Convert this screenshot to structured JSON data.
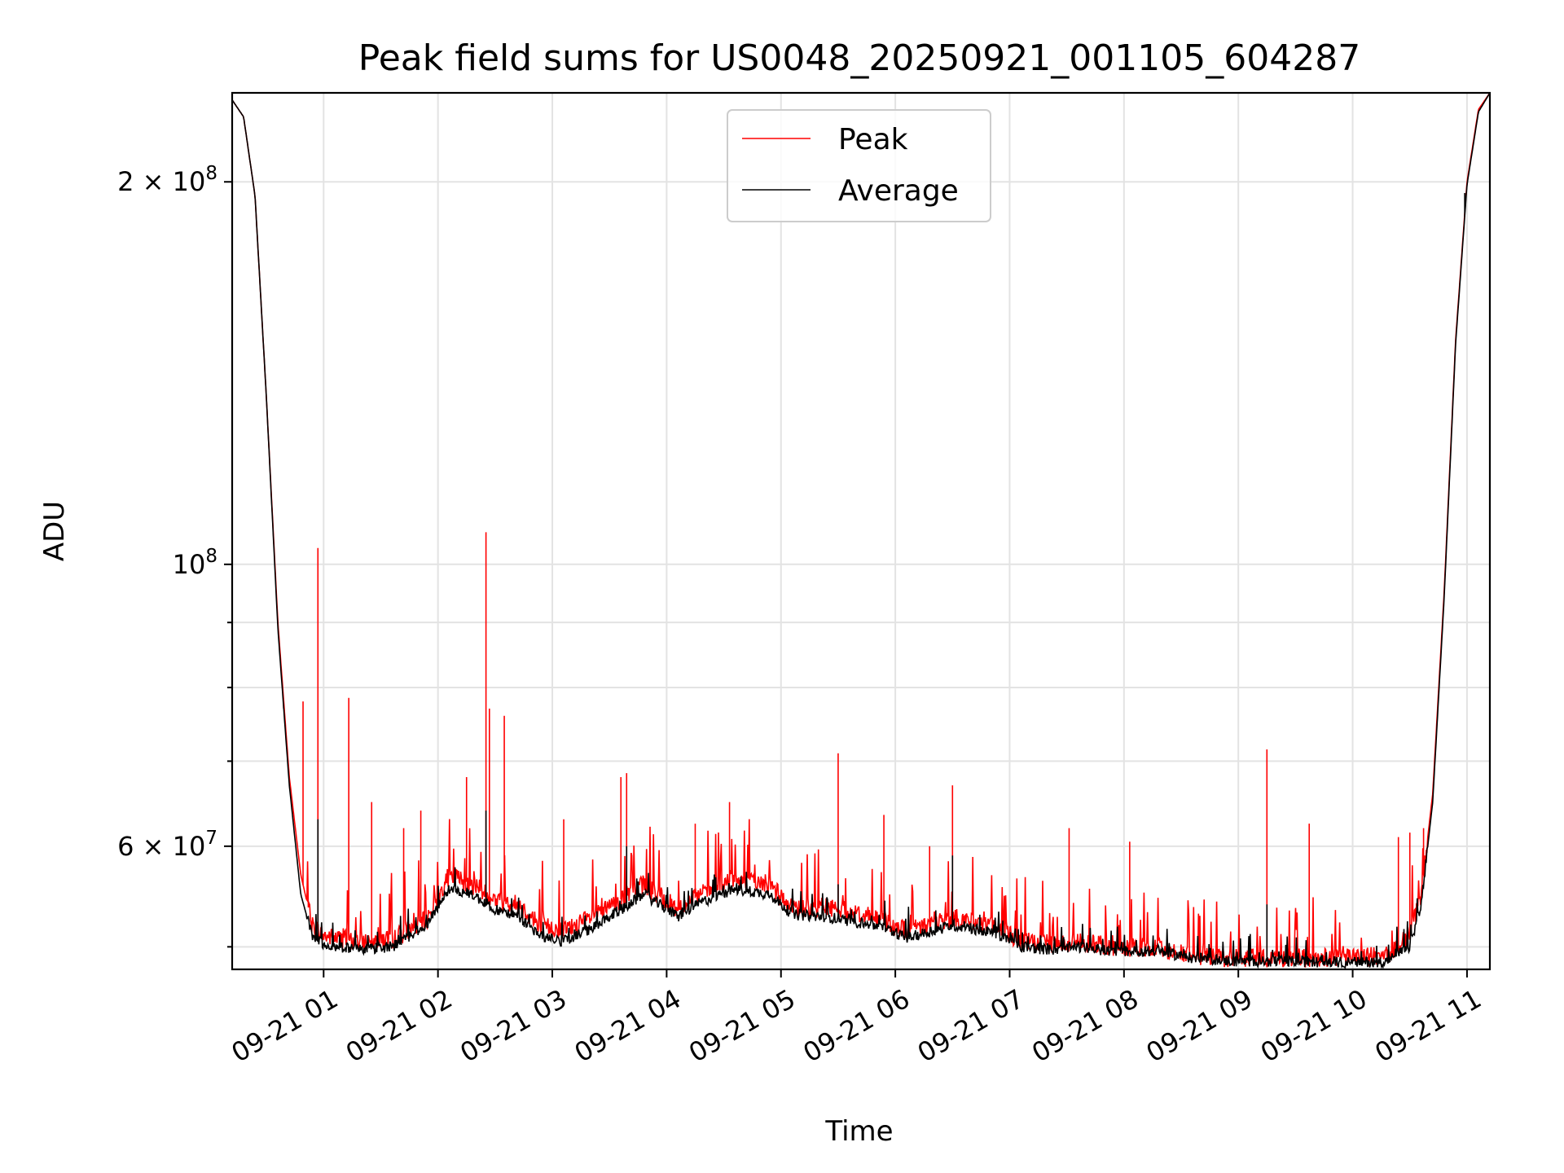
{
  "chart_data": {
    "type": "line",
    "title": "Peak field sums for US0048_20250921_001105_604287",
    "xlabel": "Time",
    "ylabel": "ADU",
    "y_scale": "log",
    "ylim": [
      48000000,
      235000000
    ],
    "xlim_hours": [
      0.2,
      11.2
    ],
    "grid": true,
    "legend_position": "upper-center",
    "x_tick_labels": [
      {
        "hour": 1,
        "label": "09-21 01"
      },
      {
        "hour": 2,
        "label": "09-21 02"
      },
      {
        "hour": 3,
        "label": "09-21 03"
      },
      {
        "hour": 4,
        "label": "09-21 04"
      },
      {
        "hour": 5,
        "label": "09-21 05"
      },
      {
        "hour": 6,
        "label": "09-21 06"
      },
      {
        "hour": 7,
        "label": "09-21 07"
      },
      {
        "hour": 8,
        "label": "09-21 08"
      },
      {
        "hour": 9,
        "label": "09-21 09"
      },
      {
        "hour": 10,
        "label": "09-21 10"
      },
      {
        "hour": 11,
        "label": "09-21 11"
      }
    ],
    "y_major_ticks": [
      {
        "value": 60000000,
        "mantissa": "6",
        "exponent": "7"
      },
      {
        "value": 100000000,
        "mantissa": "",
        "exponent": "8"
      },
      {
        "value": 200000000,
        "mantissa": "2",
        "exponent": "8"
      }
    ],
    "y_minor_ticks": [
      50000000,
      70000000,
      80000000,
      90000000
    ],
    "series": [
      {
        "name": "Peak",
        "color": "#ff0000",
        "base_points": [
          [
            0.2,
            232000000
          ],
          [
            0.3,
            225000000
          ],
          [
            0.4,
            195000000
          ],
          [
            0.5,
            135000000
          ],
          [
            0.6,
            90000000
          ],
          [
            0.7,
            68000000
          ],
          [
            0.8,
            57000000
          ],
          [
            0.9,
            52000000
          ],
          [
            1.0,
            51000000
          ],
          [
            1.3,
            50500000
          ],
          [
            1.6,
            50800000
          ],
          [
            1.9,
            52500000
          ],
          [
            2.1,
            57000000
          ],
          [
            2.3,
            56000000
          ],
          [
            2.5,
            54500000
          ],
          [
            2.7,
            54000000
          ],
          [
            2.9,
            52000000
          ],
          [
            3.1,
            51500000
          ],
          [
            3.4,
            53000000
          ],
          [
            3.8,
            56000000
          ],
          [
            4.1,
            53500000
          ],
          [
            4.3,
            55000000
          ],
          [
            4.6,
            56500000
          ],
          [
            4.9,
            56000000
          ],
          [
            5.1,
            53500000
          ],
          [
            5.4,
            53800000
          ],
          [
            5.7,
            53000000
          ],
          [
            5.9,
            52500000
          ],
          [
            6.1,
            51500000
          ],
          [
            6.5,
            52700000
          ],
          [
            6.9,
            52000000
          ],
          [
            7.1,
            50500000
          ],
          [
            7.4,
            50200000
          ],
          [
            7.6,
            50500000
          ],
          [
            7.9,
            50000000
          ],
          [
            8.3,
            49900000
          ],
          [
            8.6,
            49200000
          ],
          [
            9.0,
            49000000
          ],
          [
            9.5,
            49000000
          ],
          [
            10.0,
            49000000
          ],
          [
            10.3,
            49200000
          ],
          [
            10.5,
            51000000
          ],
          [
            10.6,
            55000000
          ],
          [
            10.7,
            66000000
          ],
          [
            10.8,
            95000000
          ],
          [
            10.9,
            150000000
          ],
          [
            11.0,
            200000000
          ],
          [
            11.1,
            228000000
          ],
          [
            11.2,
            235000000
          ]
        ],
        "spikes": [
          [
            0.65,
            77000000
          ],
          [
            0.82,
            78000000
          ],
          [
            0.95,
            103000000
          ],
          [
            1.22,
            78500000
          ],
          [
            1.42,
            65000000
          ],
          [
            1.7,
            62000000
          ],
          [
            1.85,
            64000000
          ],
          [
            2.25,
            68000000
          ],
          [
            2.42,
            106000000
          ],
          [
            2.45,
            77000000
          ],
          [
            2.58,
            76000000
          ],
          [
            3.1,
            63000000
          ],
          [
            3.6,
            68000000
          ],
          [
            3.65,
            68500000
          ],
          [
            4.25,
            62500000
          ],
          [
            4.55,
            65000000
          ],
          [
            5.5,
            71000000
          ],
          [
            5.9,
            63500000
          ],
          [
            6.3,
            60000000
          ],
          [
            6.5,
            67000000
          ],
          [
            7.52,
            62000000
          ],
          [
            8.05,
            60500000
          ],
          [
            9.25,
            71500000
          ],
          [
            9.62,
            62500000
          ],
          [
            10.4,
            61000000
          ],
          [
            10.5,
            61500000
          ],
          [
            10.62,
            62000000
          ]
        ]
      },
      {
        "name": "Average",
        "color": "#000000",
        "base_points": [
          [
            0.2,
            232000000
          ],
          [
            0.3,
            225000000
          ],
          [
            0.4,
            195000000
          ],
          [
            0.5,
            135000000
          ],
          [
            0.6,
            89000000
          ],
          [
            0.7,
            67000000
          ],
          [
            0.8,
            55000000
          ],
          [
            0.9,
            51000000
          ],
          [
            1.0,
            50200000
          ],
          [
            1.3,
            49800000
          ],
          [
            1.6,
            50000000
          ],
          [
            1.9,
            52000000
          ],
          [
            2.1,
            55500000
          ],
          [
            2.3,
            55000000
          ],
          [
            2.5,
            53500000
          ],
          [
            2.7,
            52800000
          ],
          [
            2.9,
            51000000
          ],
          [
            3.1,
            50500000
          ],
          [
            3.4,
            52000000
          ],
          [
            3.8,
            55000000
          ],
          [
            4.1,
            52800000
          ],
          [
            4.3,
            54200000
          ],
          [
            4.6,
            55500000
          ],
          [
            4.9,
            55000000
          ],
          [
            5.1,
            53000000
          ],
          [
            5.4,
            52800000
          ],
          [
            5.7,
            52200000
          ],
          [
            5.9,
            51800000
          ],
          [
            6.1,
            50800000
          ],
          [
            6.5,
            52000000
          ],
          [
            6.9,
            51200000
          ],
          [
            7.1,
            50000000
          ],
          [
            7.4,
            49700000
          ],
          [
            7.6,
            50000000
          ],
          [
            7.9,
            49600000
          ],
          [
            8.3,
            49600000
          ],
          [
            8.6,
            49000000
          ],
          [
            9.0,
            48700000
          ],
          [
            9.5,
            48700000
          ],
          [
            10.0,
            48600000
          ],
          [
            10.3,
            48700000
          ],
          [
            10.5,
            50000000
          ],
          [
            10.6,
            54000000
          ],
          [
            10.7,
            65000000
          ],
          [
            10.8,
            94000000
          ],
          [
            10.9,
            149000000
          ],
          [
            11.0,
            199000000
          ],
          [
            11.1,
            227000000
          ],
          [
            11.2,
            235000000
          ]
        ],
        "spikes": [
          [
            0.95,
            63000000
          ],
          [
            2.42,
            64000000
          ],
          [
            3.65,
            60000000
          ],
          [
            5.5,
            56000000
          ],
          [
            6.5,
            59000000
          ],
          [
            9.25,
            54000000
          ],
          [
            10.98,
            196000000
          ]
        ]
      }
    ]
  }
}
